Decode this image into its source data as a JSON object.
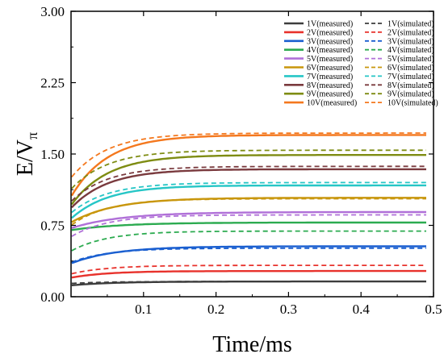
{
  "chart_data": {
    "type": "line",
    "xlabel": "Time/ms",
    "ylabel_main": "E/V",
    "ylabel_sub": "π",
    "xlim": [
      0.0,
      0.5
    ],
    "ylim": [
      0.0,
      3.0
    ],
    "xticks": [
      {
        "value": 0.1,
        "label": "0.1"
      },
      {
        "value": 0.2,
        "label": "0.2"
      },
      {
        "value": 0.3,
        "label": "0.3"
      },
      {
        "value": 0.4,
        "label": "0.4"
      },
      {
        "value": 0.5,
        "label": "0.5"
      }
    ],
    "yticks": [
      {
        "value": 0.0,
        "label": "0.00"
      },
      {
        "value": 0.75,
        "label": "0.75"
      },
      {
        "value": 1.5,
        "label": "1.50"
      },
      {
        "value": 2.25,
        "label": "2.25"
      },
      {
        "value": 3.0,
        "label": "3.00"
      }
    ],
    "grid": false,
    "legend_position": "top-right",
    "series": [
      {
        "name": "1V(measured)",
        "color": "#3d3d3d",
        "style": "solid",
        "start": 0.12,
        "end": 0.16,
        "tau": 0.06,
        "x_end": 0.49
      },
      {
        "name": "2V(measured)",
        "color": "#e8322c",
        "style": "solid",
        "start": 0.2,
        "end": 0.27,
        "tau": 0.05,
        "x_end": 0.49
      },
      {
        "name": "3V(measured)",
        "color": "#1a5fd0",
        "style": "solid",
        "start": 0.35,
        "end": 0.53,
        "tau": 0.06,
        "x_end": 0.49
      },
      {
        "name": "4V(measured)",
        "color": "#2cab50",
        "style": "solid",
        "start": 0.7,
        "end": 0.78,
        "tau": 0.07,
        "x_end": 0.49
      },
      {
        "name": "5V(measured)",
        "color": "#b070d8",
        "style": "solid",
        "start": 0.72,
        "end": 0.89,
        "tau": 0.07,
        "x_end": 0.49
      },
      {
        "name": "6V(measured)",
        "color": "#c8960c",
        "style": "solid",
        "start": 0.78,
        "end": 1.04,
        "tau": 0.06,
        "x_end": 0.49
      },
      {
        "name": "7V(measured)",
        "color": "#26c6c6",
        "style": "solid",
        "start": 0.82,
        "end": 1.17,
        "tau": 0.05,
        "x_end": 0.49
      },
      {
        "name": "8V(measured)",
        "color": "#7a3a3e",
        "style": "solid",
        "start": 0.93,
        "end": 1.34,
        "tau": 0.05,
        "x_end": 0.49
      },
      {
        "name": "9V(measured)",
        "color": "#7e8c12",
        "style": "solid",
        "start": 0.96,
        "end": 1.49,
        "tau": 0.05,
        "x_end": 0.49
      },
      {
        "name": "10V(measured)",
        "color": "#f4781e",
        "style": "solid",
        "start": 1.05,
        "end": 1.7,
        "tau": 0.05,
        "x_end": 0.49
      },
      {
        "name": "1V(simulated)",
        "color": "#3d3d3d",
        "style": "dashed",
        "start": 0.14,
        "end": 0.16,
        "tau": 0.05,
        "x_end": 0.49
      },
      {
        "name": "2V(simulated)",
        "color": "#e8322c",
        "style": "dashed",
        "start": 0.24,
        "end": 0.33,
        "tau": 0.05,
        "x_end": 0.49
      },
      {
        "name": "3V(simulated)",
        "color": "#1a5fd0",
        "style": "dashed",
        "start": 0.36,
        "end": 0.51,
        "tau": 0.05,
        "x_end": 0.49
      },
      {
        "name": "4V(simulated)",
        "color": "#2cab50",
        "style": "dashed",
        "start": 0.48,
        "end": 0.69,
        "tau": 0.05,
        "x_end": 0.49
      },
      {
        "name": "5V(simulated)",
        "color": "#b070d8",
        "style": "dashed",
        "start": 0.63,
        "end": 0.86,
        "tau": 0.05,
        "x_end": 0.49
      },
      {
        "name": "6V(simulated)",
        "color": "#c8960c",
        "style": "dashed",
        "start": 0.75,
        "end": 1.03,
        "tau": 0.05,
        "x_end": 0.49
      },
      {
        "name": "7V(simulated)",
        "color": "#26c6c6",
        "style": "dashed",
        "start": 0.88,
        "end": 1.2,
        "tau": 0.05,
        "x_end": 0.49
      },
      {
        "name": "8V(simulated)",
        "color": "#7a3a3e",
        "style": "dashed",
        "start": 1.0,
        "end": 1.37,
        "tau": 0.05,
        "x_end": 0.49
      },
      {
        "name": "9V(simulated)",
        "color": "#7e8c12",
        "style": "dashed",
        "start": 1.13,
        "end": 1.54,
        "tau": 0.05,
        "x_end": 0.49
      },
      {
        "name": "10V(simulated)",
        "color": "#f4781e",
        "style": "dashed",
        "start": 1.25,
        "end": 1.72,
        "tau": 0.05,
        "x_end": 0.49
      }
    ]
  }
}
